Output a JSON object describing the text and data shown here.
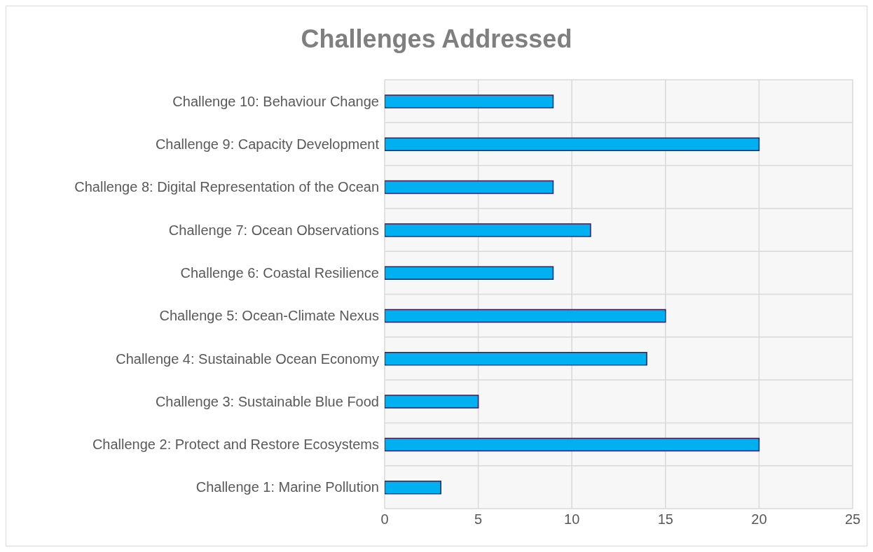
{
  "chart_data": {
    "type": "bar",
    "title": "Challenges Addressed",
    "orientation": "horizontal",
    "categories": [
      "Challenge 10: Behaviour Change",
      "Challenge 9: Capacity Development",
      "Challenge 8: Digital Representation of the Ocean",
      "Challenge 7: Ocean Observations",
      "Challenge 6: Coastal Resilience",
      "Challenge 5: Ocean-Climate Nexus",
      "Challenge 4: Sustainable Ocean Economy",
      "Challenge 3: Sustainable Blue Food",
      "Challenge 2: Protect and Restore Ecosystems",
      "Challenge 1: Marine Pollution"
    ],
    "values": [
      9,
      20,
      9,
      11,
      9,
      15,
      14,
      5,
      20,
      3
    ],
    "color": "#00b0f0",
    "xlim": [
      0,
      25
    ],
    "xticks": [
      0,
      5,
      10,
      15,
      20,
      25
    ],
    "grid": true
  }
}
